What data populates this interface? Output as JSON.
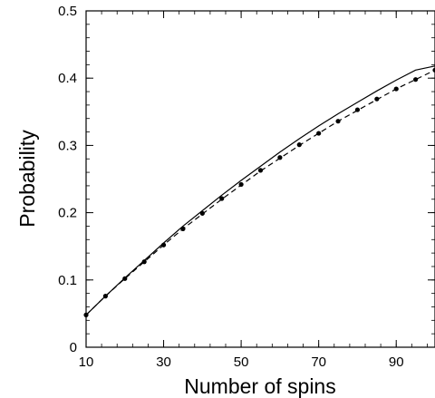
{
  "chart_data": {
    "type": "line",
    "title": "",
    "xlabel": "Number of spins",
    "ylabel": "Probability",
    "xlim": [
      10,
      100
    ],
    "ylim": [
      0,
      0.5
    ],
    "x_ticks": [
      10,
      30,
      50,
      70,
      90
    ],
    "x_tick_labels": [
      "10",
      "30",
      "50",
      "70",
      "90"
    ],
    "y_ticks": [
      0,
      0.1,
      0.2,
      0.3,
      0.4,
      0.5
    ],
    "y_tick_labels": [
      "0",
      "0.1",
      "0.2",
      "0.3",
      "0.4",
      "0.5"
    ],
    "grid": false,
    "legend": "none",
    "series": [
      {
        "style": "solid",
        "color": "#000000",
        "x": [
          10,
          15,
          20,
          25,
          30,
          35,
          40,
          45,
          50,
          55,
          60,
          65,
          70,
          75,
          80,
          85,
          90,
          95,
          100
        ],
        "values": [
          0.048,
          0.076,
          0.103,
          0.129,
          0.155,
          0.18,
          0.203,
          0.226,
          0.248,
          0.269,
          0.29,
          0.31,
          0.329,
          0.347,
          0.364,
          0.381,
          0.397,
          0.412,
          0.418
        ]
      },
      {
        "style": "dashed",
        "color": "#000000",
        "x": [
          10,
          15,
          20,
          25,
          30,
          35,
          40,
          45,
          50,
          55,
          60,
          65,
          70,
          75,
          80,
          85,
          90,
          95,
          100
        ],
        "values": [
          0.048,
          0.076,
          0.102,
          0.127,
          0.152,
          0.176,
          0.198,
          0.22,
          0.241,
          0.262,
          0.281,
          0.3,
          0.318,
          0.336,
          0.352,
          0.368,
          0.384,
          0.398,
          0.412
        ]
      },
      {
        "style": "points",
        "color": "#000000",
        "x": [
          10,
          15,
          20,
          25,
          30,
          35,
          40,
          45,
          50,
          55,
          60,
          65,
          70,
          75,
          80,
          85,
          90,
          95,
          100
        ],
        "values": [
          0.048,
          0.076,
          0.102,
          0.127,
          0.152,
          0.176,
          0.199,
          0.221,
          0.242,
          0.263,
          0.282,
          0.301,
          0.318,
          0.336,
          0.353,
          0.369,
          0.384,
          0.398,
          0.412
        ]
      }
    ]
  }
}
